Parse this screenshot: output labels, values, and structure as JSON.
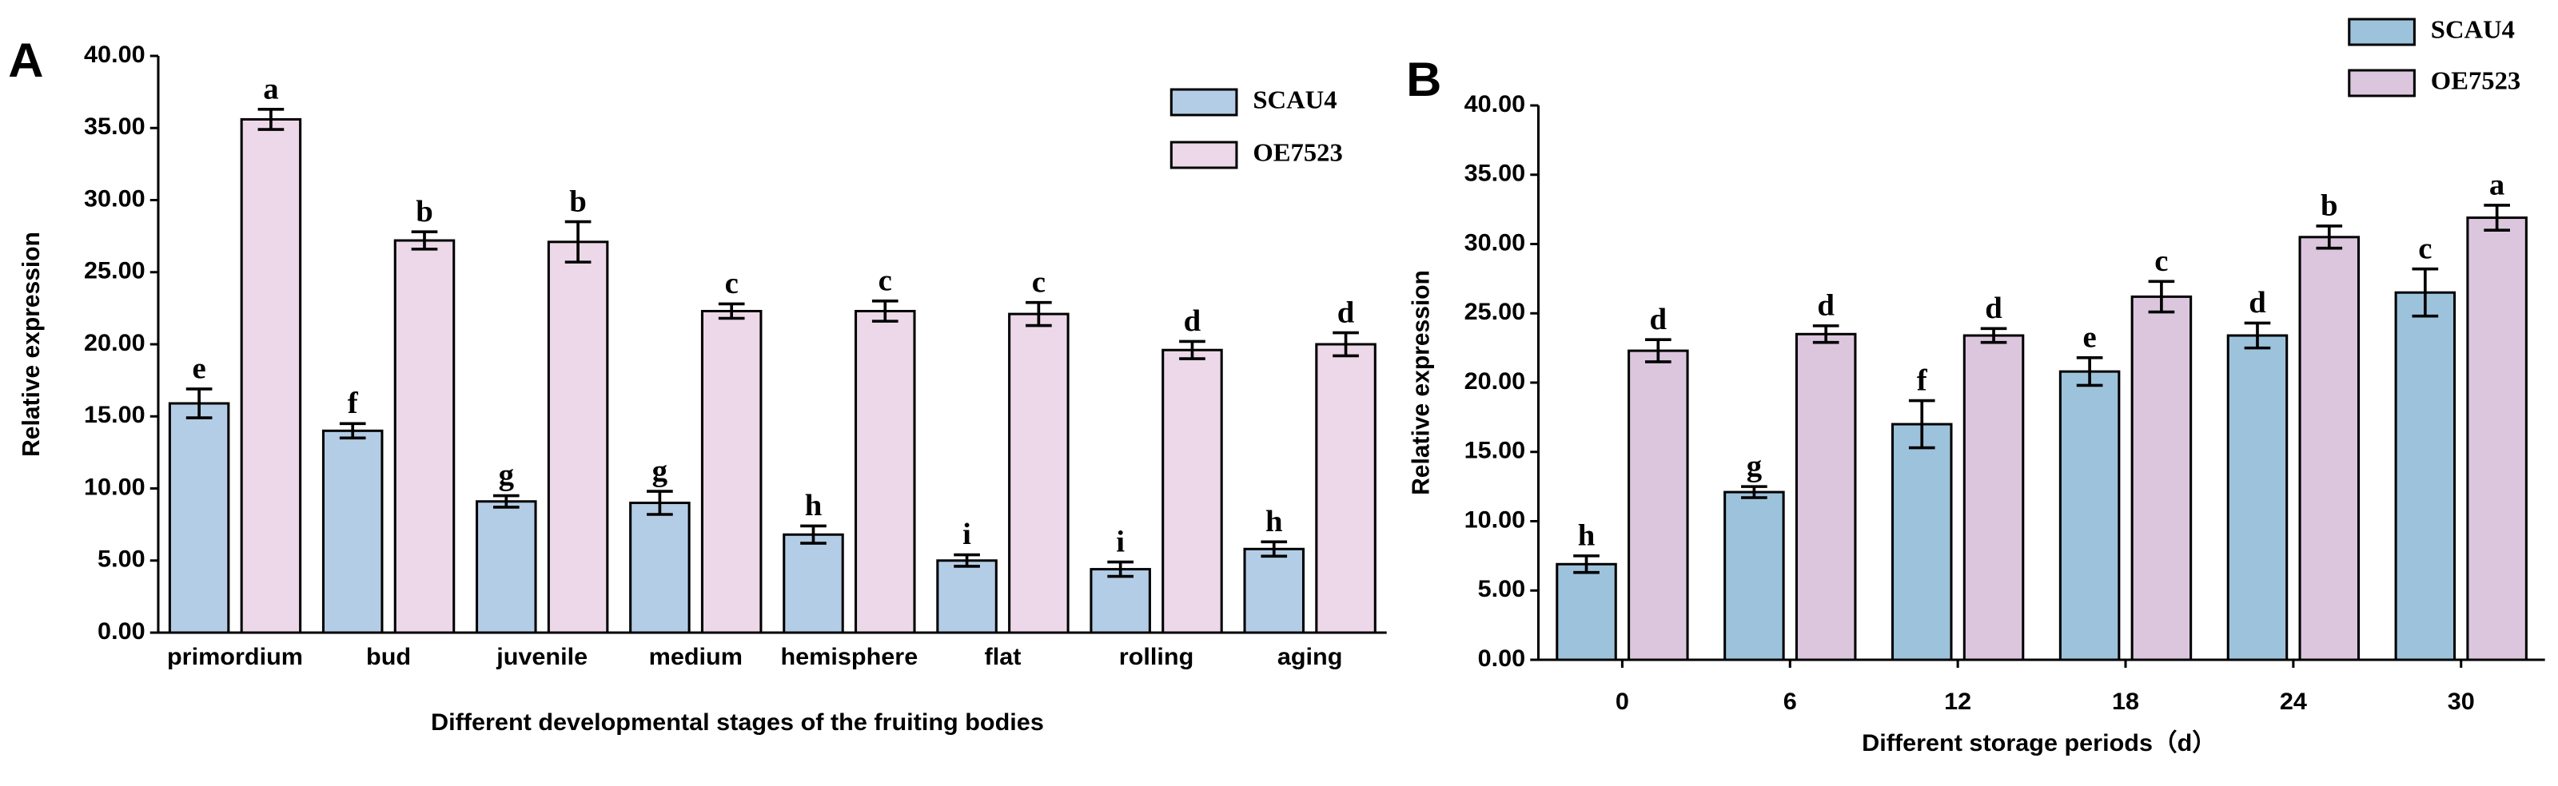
{
  "chart_data": [
    {
      "type": "bar",
      "panel": "A",
      "ylabel": "Relative expression",
      "xlabel": "Different developmental stages of the fruiting bodies",
      "categories": [
        "primordium",
        "bud",
        "juvenile",
        "medium",
        "hemisphere",
        "flat",
        "rolling",
        "aging"
      ],
      "series": [
        {
          "name": "SCAU4",
          "color": "#b4cde6",
          "values": [
            15.9,
            14.0,
            9.1,
            9.0,
            6.8,
            5.0,
            4.4,
            5.8
          ],
          "errors": [
            1.0,
            0.5,
            0.4,
            0.8,
            0.6,
            0.4,
            0.5,
            0.5
          ],
          "letters": [
            "e",
            "f",
            "g",
            "g",
            "h",
            "i",
            "i",
            "h"
          ]
        },
        {
          "name": "OE7523",
          "color": "#ecd8e8",
          "values": [
            35.6,
            27.2,
            27.1,
            22.3,
            22.3,
            22.1,
            19.6,
            20.0
          ],
          "errors": [
            0.7,
            0.6,
            1.4,
            0.5,
            0.7,
            0.8,
            0.6,
            0.8
          ],
          "letters": [
            "a",
            "b",
            "b",
            "c",
            "c",
            "c",
            "d",
            "d"
          ]
        }
      ],
      "ylim": [
        0,
        40
      ],
      "yticks": [
        {
          "value": 0,
          "label": "0.00"
        },
        {
          "value": 5,
          "label": "5.00"
        },
        {
          "value": 10,
          "label": "10.00"
        },
        {
          "value": 15,
          "label": "15.00"
        },
        {
          "value": 20,
          "label": "20.00"
        },
        {
          "value": 25,
          "label": "25.00"
        },
        {
          "value": 30,
          "label": "30.00"
        },
        {
          "value": 35,
          "label": "35.00"
        },
        {
          "value": 40,
          "label": "40.00"
        }
      ]
    },
    {
      "type": "bar",
      "panel": "B",
      "ylabel": "Relative expression",
      "xlabel": "Different storage periods（d）",
      "categories": [
        "0",
        "6",
        "12",
        "18",
        "24",
        "30"
      ],
      "series": [
        {
          "name": "SCAU4",
          "color": "#9dc3dc",
          "values": [
            6.9,
            12.1,
            17.0,
            20.8,
            23.4,
            26.5
          ],
          "errors": [
            0.6,
            0.4,
            1.7,
            1.0,
            0.9,
            1.7
          ],
          "letters": [
            "h",
            "g",
            "f",
            "e",
            "d",
            "c"
          ]
        },
        {
          "name": "OE7523",
          "color": "#dcc6de",
          "values": [
            22.3,
            23.5,
            23.4,
            26.2,
            30.5,
            31.9
          ],
          "errors": [
            0.8,
            0.6,
            0.5,
            1.1,
            0.8,
            0.9
          ],
          "letters": [
            "d",
            "d",
            "d",
            "c",
            "b",
            "a"
          ]
        }
      ],
      "ylim": [
        0,
        40
      ],
      "yticks": [
        {
          "value": 0,
          "label": "0.00"
        },
        {
          "value": 5,
          "label": "5.00"
        },
        {
          "value": 10,
          "label": "10.00"
        },
        {
          "value": 15,
          "label": "15.00"
        },
        {
          "value": 20,
          "label": "20.00"
        },
        {
          "value": 25,
          "label": "25.00"
        },
        {
          "value": 30,
          "label": "30.00"
        },
        {
          "value": 35,
          "label": "35.00"
        },
        {
          "value": 40,
          "label": "40.00"
        }
      ]
    }
  ]
}
